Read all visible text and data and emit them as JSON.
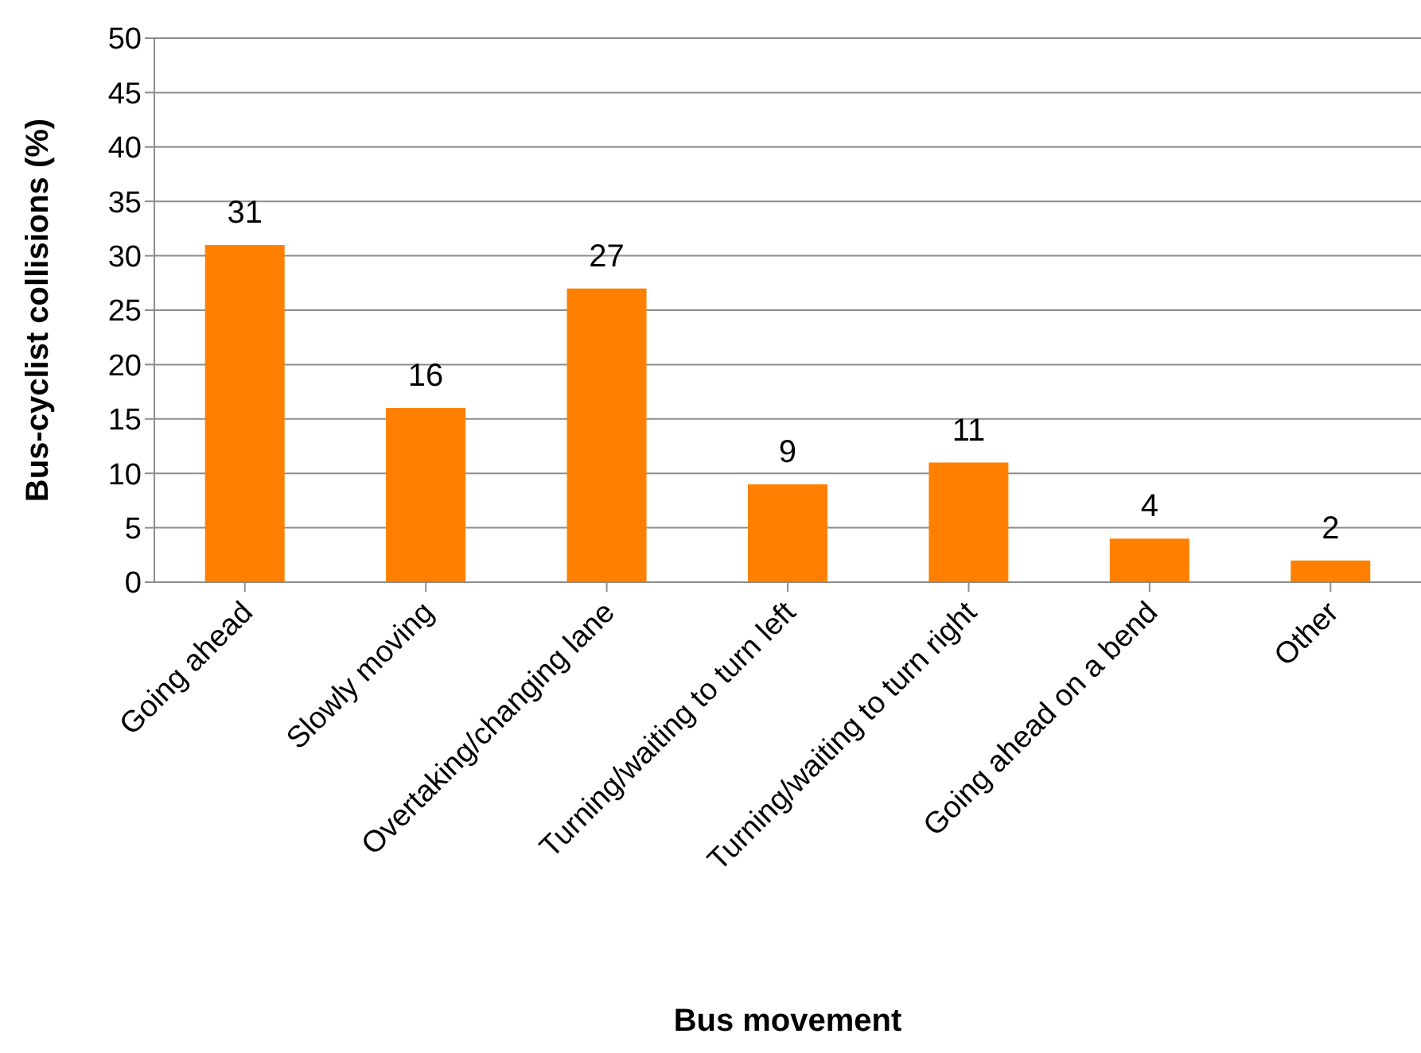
{
  "chart_data": {
    "type": "bar",
    "xlabel": "Bus movement",
    "ylabel": "Bus-cyclist collisions (%)",
    "categories": [
      "Going ahead",
      "Slowly moving",
      "Overtaking/changing lane",
      "Turning/waiting to turn left",
      "Turning/waiting to turn right",
      "Going ahead on a bend",
      "Other"
    ],
    "values": [
      31,
      16,
      27,
      9,
      11,
      4,
      2
    ],
    "color": "#ff8000",
    "ylim": [
      0,
      50
    ],
    "yticks": [
      0,
      5,
      10,
      15,
      20,
      25,
      30,
      35,
      40,
      45,
      50
    ],
    "grid": "y",
    "data_labels": true
  }
}
